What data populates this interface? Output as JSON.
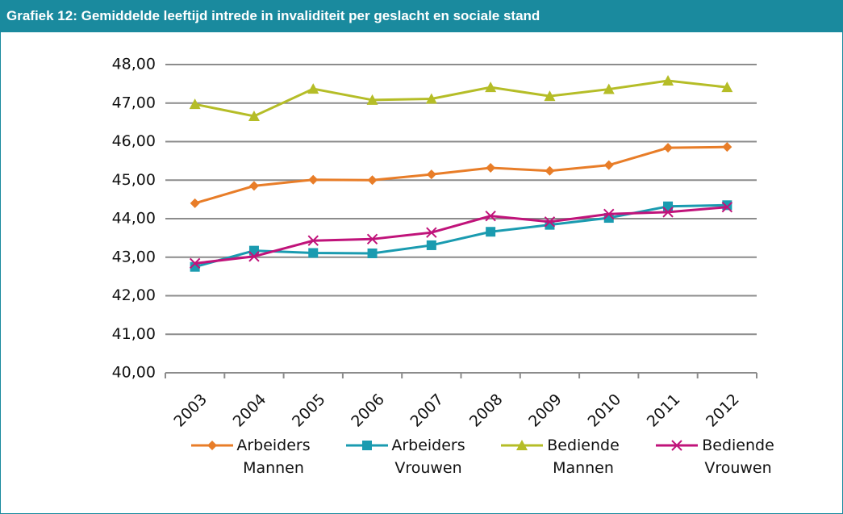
{
  "chart_data": {
    "type": "line",
    "title": "Grafiek 12: Gemiddelde leeftijd intrede in invaliditeit per geslacht en sociale stand",
    "categories": [
      "2003",
      "2004",
      "2005",
      "2006",
      "2007",
      "2008",
      "2009",
      "2010",
      "2011",
      "2012"
    ],
    "series": [
      {
        "name": "Arbeiders Mannen",
        "color": "#e87d28",
        "marker": "diamond",
        "values": [
          44.4,
          44.85,
          45.01,
          45.0,
          45.15,
          45.32,
          45.24,
          45.39,
          45.84,
          45.86
        ]
      },
      {
        "name": "Arbeiders Vrouwen",
        "color": "#1a9bb0",
        "marker": "square",
        "values": [
          42.75,
          43.17,
          43.11,
          43.1,
          43.31,
          43.66,
          43.84,
          44.02,
          44.32,
          44.35
        ]
      },
      {
        "name": "Bediende Mannen",
        "color": "#b5bd27",
        "marker": "triangle",
        "values": [
          46.97,
          46.66,
          47.37,
          47.08,
          47.11,
          47.41,
          47.18,
          47.36,
          47.58,
          47.41
        ]
      },
      {
        "name": "Bediende Vrouwen",
        "color": "#c0137a",
        "marker": "x",
        "values": [
          42.84,
          43.02,
          43.43,
          43.47,
          43.64,
          44.07,
          43.92,
          44.12,
          44.17,
          44.3
        ]
      }
    ],
    "ylim": [
      40,
      48
    ],
    "yticks": [
      {
        "value": 40,
        "label": "40,00"
      },
      {
        "value": 41,
        "label": "41,00"
      },
      {
        "value": 42,
        "label": "42,00"
      },
      {
        "value": 43,
        "label": "43,00"
      },
      {
        "value": 44,
        "label": "44,00"
      },
      {
        "value": 45,
        "label": "45,00"
      },
      {
        "value": 46,
        "label": "46,00"
      },
      {
        "value": 47,
        "label": "47,00"
      },
      {
        "value": 48,
        "label": "48,00"
      }
    ],
    "grid": true,
    "legend": "bottom"
  }
}
